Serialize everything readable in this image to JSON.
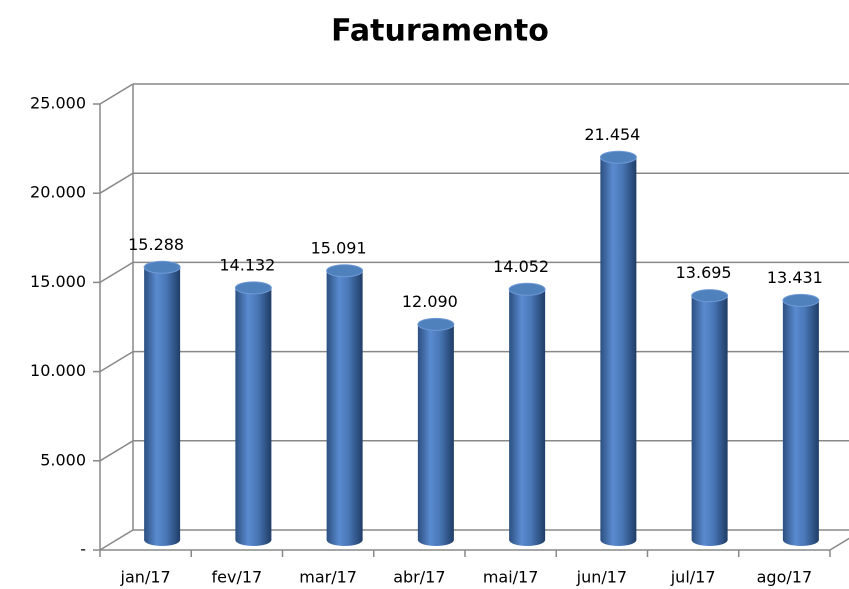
{
  "chart_data": {
    "type": "bar",
    "title": "Faturamento",
    "categories": [
      "jan/17",
      "fev/17",
      "mar/17",
      "abr/17",
      "mai/17",
      "jun/17",
      "jul/17",
      "ago/17"
    ],
    "values": [
      15288,
      14132,
      15091,
      12090,
      14052,
      21454,
      13695,
      13431
    ],
    "value_labels": [
      "15.288",
      "14.132",
      "15.091",
      "12.090",
      "14.052",
      "21.454",
      "13.695",
      "13.431"
    ],
    "color": "#4f81bd",
    "ylim": [
      0,
      25000
    ],
    "yticks": [
      {
        "value": 0,
        "label": "-"
      },
      {
        "value": 5000,
        "label": "5.000"
      },
      {
        "value": 10000,
        "label": "10.000"
      },
      {
        "value": 15000,
        "label": "15.000"
      },
      {
        "value": 20000,
        "label": "20.000"
      },
      {
        "value": 25000,
        "label": "25.000"
      }
    ],
    "grid": true
  }
}
